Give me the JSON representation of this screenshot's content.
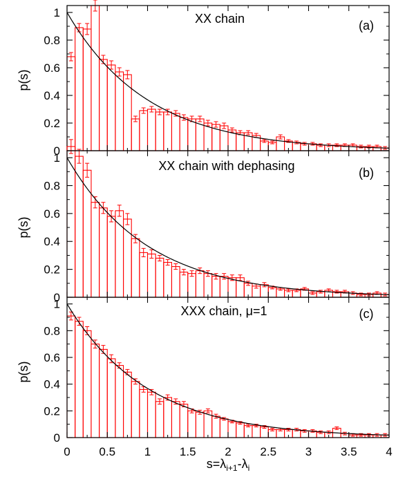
{
  "colors": {
    "bars": "#ff0000",
    "errorbars": "#ff0000",
    "curve": "#000000",
    "axes": "#000000"
  },
  "chart_data": [
    {
      "type": "bar",
      "title": "XX chain",
      "panel_label": "(a)",
      "ylabel": "p(s)",
      "xlim": [
        0,
        4
      ],
      "ylim": [
        0,
        1.05
      ],
      "xticks": [
        "0",
        "0.5",
        "1",
        "1.5",
        "2",
        "2.5",
        "3",
        "3.5",
        "4"
      ],
      "yticks": [
        "0",
        "0.2",
        "0.4",
        "0.6",
        "0.8",
        "1"
      ],
      "bin_width": 0.1,
      "values": [
        0.68,
        0.89,
        0.88,
        1.05,
        0.66,
        0.62,
        0.57,
        0.55,
        0.23,
        0.29,
        0.3,
        0.28,
        0.28,
        0.27,
        0.24,
        0.23,
        0.23,
        0.2,
        0.19,
        0.18,
        0.15,
        0.13,
        0.13,
        0.11,
        0.07,
        0.06,
        0.1,
        0.07,
        0.06,
        0.05,
        0.05,
        0.04,
        0.04,
        0.04,
        0.04,
        0.04,
        0.03,
        0.03,
        0.03,
        0.02
      ],
      "errors": [
        0.03,
        0.03,
        0.04,
        0.04,
        0.03,
        0.03,
        0.03,
        0.03,
        0.02,
        0.02,
        0.02,
        0.02,
        0.02,
        0.02,
        0.02,
        0.02,
        0.02,
        0.02,
        0.02,
        0.02,
        0.015,
        0.015,
        0.015,
        0.015,
        0.01,
        0.01,
        0.015,
        0.01,
        0.01,
        0.01,
        0.01,
        0.01,
        0.01,
        0.01,
        0.01,
        0.01,
        0.01,
        0.01,
        0.01,
        0.01
      ],
      "curve": "exp(-s)"
    },
    {
      "type": "bar",
      "title": "XX chain with dephasing",
      "panel_label": "(b)",
      "ylabel": "p(s)",
      "xlim": [
        0,
        4
      ],
      "ylim": [
        0,
        1.05
      ],
      "xticks": [
        "0",
        "0.5",
        "1",
        "1.5",
        "2",
        "2.5",
        "3",
        "3.5",
        "4"
      ],
      "yticks": [
        "0",
        "0.2",
        "0.4",
        "0.6",
        "0.8",
        "1"
      ],
      "bin_width": 0.1,
      "values": [
        1.08,
        1.01,
        0.91,
        0.68,
        0.64,
        0.58,
        0.62,
        0.56,
        0.42,
        0.32,
        0.31,
        0.28,
        0.25,
        0.22,
        0.18,
        0.17,
        0.19,
        0.17,
        0.15,
        0.15,
        0.14,
        0.14,
        0.1,
        0.08,
        0.09,
        0.07,
        0.06,
        0.05,
        0.05,
        0.06,
        0.03,
        0.04,
        0.05,
        0.04,
        0.04,
        0.03,
        0.02,
        0.02,
        0.03,
        0.02
      ],
      "errors": [
        0.05,
        0.05,
        0.05,
        0.04,
        0.04,
        0.04,
        0.04,
        0.04,
        0.03,
        0.03,
        0.03,
        0.02,
        0.02,
        0.02,
        0.02,
        0.02,
        0.02,
        0.02,
        0.02,
        0.02,
        0.02,
        0.02,
        0.015,
        0.015,
        0.015,
        0.01,
        0.01,
        0.01,
        0.01,
        0.01,
        0.01,
        0.01,
        0.01,
        0.01,
        0.01,
        0.01,
        0.01,
        0.01,
        0.01,
        0.01
      ],
      "curve": "exp(-s)"
    },
    {
      "type": "bar",
      "title": "XXX chain, μ=1",
      "panel_label": "(c)",
      "ylabel": "p(s)",
      "xlabel": "s=λ",
      "xlabel_sub1": "i+1",
      "xlabel_mid": "-λ",
      "xlabel_sub2": "i",
      "xlim": [
        0,
        4
      ],
      "ylim": [
        0,
        1.05
      ],
      "xticks": [
        "0",
        "0.5",
        "1",
        "1.5",
        "2",
        "2.5",
        "3",
        "3.5",
        "4"
      ],
      "yticks": [
        "0",
        "0.2",
        "0.4",
        "0.6",
        "0.8",
        "1"
      ],
      "bin_width": 0.1,
      "values": [
        0.91,
        0.87,
        0.8,
        0.7,
        0.66,
        0.59,
        0.54,
        0.49,
        0.42,
        0.36,
        0.34,
        0.27,
        0.3,
        0.27,
        0.25,
        0.2,
        0.19,
        0.2,
        0.16,
        0.14,
        0.12,
        0.11,
        0.09,
        0.09,
        0.08,
        0.06,
        0.06,
        0.06,
        0.06,
        0.05,
        0.05,
        0.04,
        0.04,
        0.07,
        0.03,
        0.02,
        0.02,
        0.02,
        0.02,
        0.02
      ],
      "errors": [
        0.03,
        0.03,
        0.03,
        0.03,
        0.03,
        0.03,
        0.02,
        0.02,
        0.02,
        0.02,
        0.02,
        0.02,
        0.02,
        0.02,
        0.02,
        0.015,
        0.015,
        0.015,
        0.015,
        0.01,
        0.01,
        0.01,
        0.01,
        0.01,
        0.01,
        0.01,
        0.01,
        0.01,
        0.01,
        0.01,
        0.01,
        0.01,
        0.01,
        0.01,
        0.01,
        0.01,
        0.01,
        0.01,
        0.01,
        0.01
      ],
      "curve": "exp(-s)"
    }
  ]
}
